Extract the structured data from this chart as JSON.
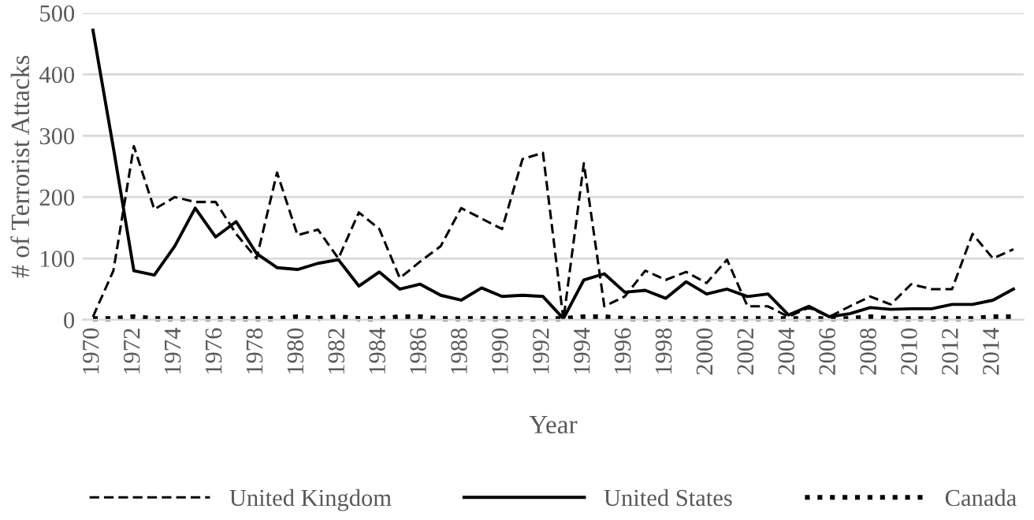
{
  "chart_data": {
    "type": "line",
    "xlabel": "Year",
    "ylabel": "# of Terrorist Attacks",
    "categories": [
      "1970",
      null,
      "1972",
      null,
      "1974",
      null,
      "1976",
      null,
      "1978",
      null,
      "1980",
      null,
      "1982",
      null,
      "1984",
      null,
      "1986",
      null,
      "1988",
      null,
      "1990",
      null,
      "1992",
      null,
      "1994",
      null,
      "1996",
      null,
      "1998",
      null,
      "2000",
      null,
      "2002",
      null,
      "2004",
      null,
      "2006",
      null,
      "2008",
      null,
      "2010",
      null,
      "2012",
      null,
      "2014",
      null
    ],
    "series": [
      {
        "name": "United Kingdom",
        "color": "#000000",
        "line_style": "dashed",
        "values": [
          5,
          80,
          283,
          180,
          200,
          192,
          192,
          140,
          100,
          240,
          138,
          147,
          100,
          175,
          148,
          68,
          95,
          120,
          182,
          165,
          148,
          262,
          272,
          0,
          255,
          22,
          38,
          80,
          65,
          78,
          60,
          98,
          22,
          22,
          5,
          20,
          5,
          22,
          38,
          25,
          58,
          50,
          50,
          140,
          100,
          115
        ]
      },
      {
        "name": "United States",
        "color": "#000000",
        "line_style": "solid",
        "values": [
          472,
          280,
          80,
          73,
          120,
          182,
          135,
          160,
          108,
          85,
          82,
          92,
          98,
          55,
          78,
          50,
          58,
          40,
          32,
          52,
          38,
          40,
          38,
          2,
          65,
          75,
          45,
          48,
          35,
          62,
          42,
          50,
          38,
          42,
          8,
          22,
          5,
          10,
          20,
          17,
          18,
          18,
          25,
          25,
          32,
          50
        ]
      },
      {
        "name": "Canada",
        "color": "#000000",
        "line_style": "dotted",
        "values": [
          2,
          2,
          5,
          2,
          2,
          2,
          2,
          2,
          2,
          2,
          5,
          2,
          5,
          2,
          2,
          5,
          5,
          2,
          2,
          2,
          2,
          2,
          2,
          2,
          5,
          5,
          2,
          2,
          2,
          2,
          2,
          2,
          2,
          2,
          2,
          2,
          2,
          2,
          5,
          2,
          2,
          2,
          2,
          2,
          5,
          5
        ]
      }
    ],
    "ylim": [
      0,
      500
    ],
    "yticks": [
      0,
      100,
      200,
      300,
      400,
      500
    ],
    "grid": "y",
    "legend": "bottom"
  }
}
